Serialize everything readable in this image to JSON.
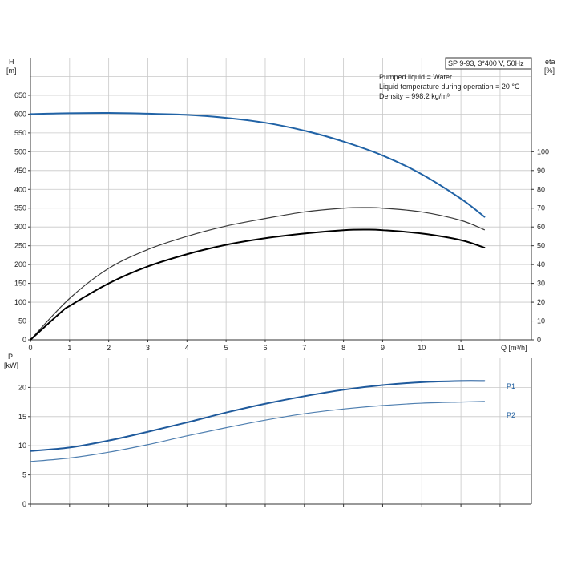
{
  "colors": {
    "head_curve": "#2163a6",
    "eta_curve": "#3a3a3a",
    "eta_pump_curve": "#000000",
    "p1_curve": "#1f5a9c",
    "p2_curve": "#4f7fb0",
    "grid": "#c8c8c8"
  },
  "info_box": {
    "title": "SP 9-93, 3*400 V, 50Hz"
  },
  "notes": {
    "line1": "Pumped liquid = Water",
    "line2": "Liquid temperature during operation = 20 °C",
    "line3": "Density = 998.2 kg/m³"
  },
  "chart_data": [
    {
      "type": "line",
      "xlabel": "Q [m³/h]",
      "ylabel": "H",
      "ylabel_unit": "[m]",
      "ylabel_right": "eta",
      "ylabel_right_unit": "[%]",
      "xlim": [
        0,
        12.8
      ],
      "ylim": [
        0,
        750
      ],
      "ylim_right": [
        0,
        150
      ],
      "xticks": [
        "0",
        "1",
        "2",
        "3",
        "4",
        "5",
        "6",
        "7",
        "8",
        "9",
        "10",
        "11"
      ],
      "yticks": [
        "0",
        "50",
        "100",
        "150",
        "200",
        "250",
        "300",
        "350",
        "400",
        "450",
        "500",
        "550",
        "600",
        "650"
      ],
      "yticks_right": [
        "0",
        "10",
        "20",
        "30",
        "40",
        "50",
        "60",
        "70",
        "80",
        "90",
        "100"
      ],
      "series": [
        {
          "key": "head",
          "axis": "left",
          "points": [
            [
              0,
              600
            ],
            [
              0.8,
              602
            ],
            [
              2,
              603
            ],
            [
              3,
              601
            ],
            [
              4,
              598
            ],
            [
              5,
              590
            ],
            [
              6,
              577
            ],
            [
              7,
              556
            ],
            [
              8,
              527
            ],
            [
              9,
              490
            ],
            [
              10,
              440
            ],
            [
              11,
              375
            ],
            [
              11.6,
              327
            ]
          ]
        },
        {
          "key": "eta_total",
          "axis": "right",
          "points": [
            [
              0,
              0
            ],
            [
              1,
              22
            ],
            [
              2,
              38
            ],
            [
              3,
              48
            ],
            [
              4,
              55
            ],
            [
              5,
              60.5
            ],
            [
              6,
              64.5
            ],
            [
              7,
              68
            ],
            [
              8,
              70
            ],
            [
              8.6,
              70.3
            ],
            [
              9,
              70
            ],
            [
              10,
              68
            ],
            [
              11,
              63.5
            ],
            [
              11.6,
              58.5
            ]
          ]
        },
        {
          "key": "eta_pump",
          "axis": "right",
          "points": [
            [
              0,
              0
            ],
            [
              0.8,
              15
            ],
            [
              1,
              18
            ],
            [
              2,
              30
            ],
            [
              3,
              39
            ],
            [
              4,
              45.5
            ],
            [
              5,
              50.5
            ],
            [
              6,
              54
            ],
            [
              7,
              56.5
            ],
            [
              8,
              58.3
            ],
            [
              8.6,
              58.6
            ],
            [
              9,
              58.3
            ],
            [
              10,
              56.5
            ],
            [
              11,
              53
            ],
            [
              11.6,
              49
            ]
          ]
        }
      ]
    },
    {
      "type": "line",
      "ylabel": "P",
      "ylabel_unit": "[kW]",
      "xlim": [
        0,
        12.8
      ],
      "ylim": [
        0,
        25
      ],
      "yticks": [
        "0",
        "5",
        "10",
        "15",
        "20"
      ],
      "series": [
        {
          "name": "P1",
          "key": "p1",
          "points": [
            [
              0,
              9.1
            ],
            [
              1,
              9.7
            ],
            [
              2,
              10.9
            ],
            [
              3,
              12.4
            ],
            [
              4,
              14
            ],
            [
              5,
              15.7
            ],
            [
              6,
              17.2
            ],
            [
              7,
              18.5
            ],
            [
              8,
              19.6
            ],
            [
              9,
              20.4
            ],
            [
              10,
              20.9
            ],
            [
              11,
              21.1
            ],
            [
              11.6,
              21.1
            ]
          ]
        },
        {
          "name": "P2",
          "key": "p2",
          "points": [
            [
              0,
              7.3
            ],
            [
              1,
              7.9
            ],
            [
              2,
              8.9
            ],
            [
              3,
              10.2
            ],
            [
              4,
              11.7
            ],
            [
              5,
              13.1
            ],
            [
              6,
              14.4
            ],
            [
              7,
              15.5
            ],
            [
              8,
              16.3
            ],
            [
              9,
              16.9
            ],
            [
              10,
              17.3
            ],
            [
              11,
              17.5
            ],
            [
              11.6,
              17.6
            ]
          ]
        }
      ]
    }
  ]
}
